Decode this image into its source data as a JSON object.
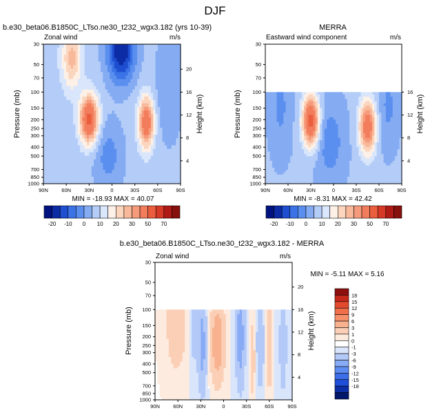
{
  "page_title": "DJF",
  "colors": {
    "wind_levels": [
      "#00137f",
      "#0c2ca6",
      "#1e4fd0",
      "#3b73e6",
      "#5b8fef",
      "#85acf3",
      "#b4cdf8",
      "#d9e6fb",
      "#fdf0e6",
      "#fbd5be",
      "#f8b89a",
      "#f59a7a",
      "#f27d5c",
      "#ea5d3d",
      "#d63a26",
      "#b01a16",
      "#86100d"
    ],
    "diff_levels": [
      "#03186b",
      "#0c2fa6",
      "#1f4fd8",
      "#3c6ee8",
      "#5f8cf0",
      "#88abf5",
      "#b3c9f8",
      "#d9e5fb",
      "#ffffff",
      "#fdebdf",
      "#fbcfb6",
      "#f8b28f",
      "#f5916a",
      "#f06e4a",
      "#e24a2d",
      "#c4281b",
      "#8c0f0d"
    ]
  },
  "chart_data": [
    {
      "type": "heatmap",
      "title": "b.e30_beta06.B1850C_LTso.ne30_t232_wgx3.182 (yrs 10-39)",
      "left_label": "Zonal wind",
      "units": "m/s",
      "ylabel": "Pressure (mb)",
      "y2label": "Height (km)",
      "x_ticks": [
        "90N",
        "60N",
        "30N",
        "0",
        "30S",
        "60S",
        "90S"
      ],
      "y_ticks": [
        "30",
        "50",
        "70",
        "100",
        "150",
        "200",
        "250",
        "300",
        "400",
        "500",
        "700",
        "850",
        "1000"
      ],
      "y2_ticks": [
        "20",
        "16",
        "12",
        "8",
        "4"
      ],
      "stats": "MIN = -18.93   MAX = 40.07",
      "data_top_mb": 30
    },
    {
      "type": "heatmap",
      "title": "MERRA",
      "left_label": "Eastward wind component",
      "units": "m/s",
      "ylabel": "Pressure (mb)",
      "y2label": "Height (km)",
      "x_ticks": [
        "90N",
        "60N",
        "30N",
        "0",
        "30S",
        "60S",
        "90S"
      ],
      "y_ticks": [
        "30",
        "50",
        "70",
        "100",
        "150",
        "200",
        "250",
        "300",
        "400",
        "500",
        "700",
        "850",
        "1000"
      ],
      "y2_ticks": [
        "16",
        "12",
        "8",
        "4"
      ],
      "stats": "MIN = -8.31   MAX = 42.42",
      "data_top_mb": 100
    },
    {
      "type": "heatmap",
      "title": "b.e30_beta06.B1850C_LTso.ne30_t232_wgx3.182 - MERRA",
      "left_label": "Zonal wind",
      "units": "m/s",
      "ylabel": "Pressure (mb)",
      "y2label": "Height (km)",
      "x_ticks": [
        "90N",
        "60N",
        "30N",
        "0",
        "30S",
        "60S",
        "90S"
      ],
      "y_ticks": [
        "30",
        "50",
        "70",
        "100",
        "150",
        "200",
        "250",
        "300",
        "400",
        "500",
        "700",
        "850",
        "1000"
      ],
      "y2_ticks": [
        "20",
        "16",
        "12",
        "8",
        "4"
      ],
      "stats": "MIN = -5.11   MAX =  5.16",
      "data_top_mb": 100
    }
  ],
  "colorbar_top": {
    "labels": [
      "-20",
      "-10",
      "0",
      "10",
      "20",
      "30",
      "50",
      "70"
    ],
    "label_slots": [
      0,
      2,
      4,
      6,
      8,
      10,
      12,
      14,
      16
    ]
  },
  "colorbar_diff": {
    "labels": [
      "18",
      "15",
      "12",
      "9",
      "6",
      "3",
      "1",
      "0",
      "-1",
      "-3",
      "-6",
      "-9",
      "-12",
      "-15",
      "-18"
    ]
  }
}
